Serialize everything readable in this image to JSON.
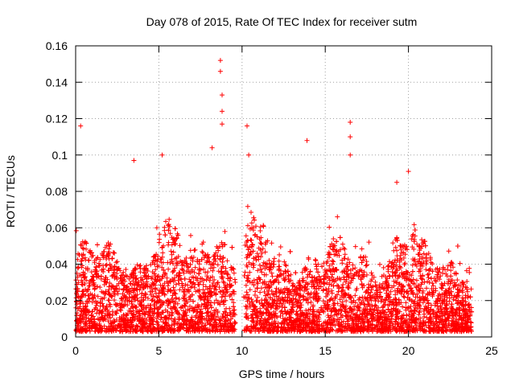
{
  "chart_data": {
    "type": "scatter",
    "title": "Day 078 of 2015, Rate Of TEC Index for receiver sutm",
    "xlabel": "GPS time / hours",
    "ylabel": "ROTI / TECUs",
    "xlim": [
      0,
      25
    ],
    "ylim": [
      0,
      0.16
    ],
    "x_ticks": [
      0,
      5,
      10,
      15,
      20,
      25
    ],
    "y_ticks": [
      0,
      0.02,
      0.04,
      0.06,
      0.08,
      0.1,
      0.12,
      0.14,
      0.16
    ],
    "x_tick_labels": [
      "0",
      "5",
      "10",
      "15",
      "20",
      "25"
    ],
    "y_tick_labels": [
      "0",
      "0.02",
      "0.04",
      "0.06",
      "0.08",
      "0.1",
      "0.12",
      "0.14",
      "0.16"
    ],
    "grid": true,
    "marker": "+",
    "marker_color": "#ff0000",
    "data_gap_hours": [
      9.6,
      10.1
    ],
    "series": [
      {
        "name": "ROTI",
        "notable_points": [
          {
            "x": 0.3,
            "y": 0.116
          },
          {
            "x": 3.5,
            "y": 0.097
          },
          {
            "x": 5.2,
            "y": 0.1
          },
          {
            "x": 8.7,
            "y": 0.152
          },
          {
            "x": 8.7,
            "y": 0.146
          },
          {
            "x": 8.8,
            "y": 0.133
          },
          {
            "x": 8.8,
            "y": 0.124
          },
          {
            "x": 8.8,
            "y": 0.117
          },
          {
            "x": 8.2,
            "y": 0.104
          },
          {
            "x": 10.3,
            "y": 0.116
          },
          {
            "x": 10.4,
            "y": 0.1
          },
          {
            "x": 13.9,
            "y": 0.108
          },
          {
            "x": 16.5,
            "y": 0.118
          },
          {
            "x": 16.5,
            "y": 0.11
          },
          {
            "x": 16.5,
            "y": 0.1
          },
          {
            "x": 19.3,
            "y": 0.085
          },
          {
            "x": 20.0,
            "y": 0.091
          }
        ]
      }
    ]
  }
}
